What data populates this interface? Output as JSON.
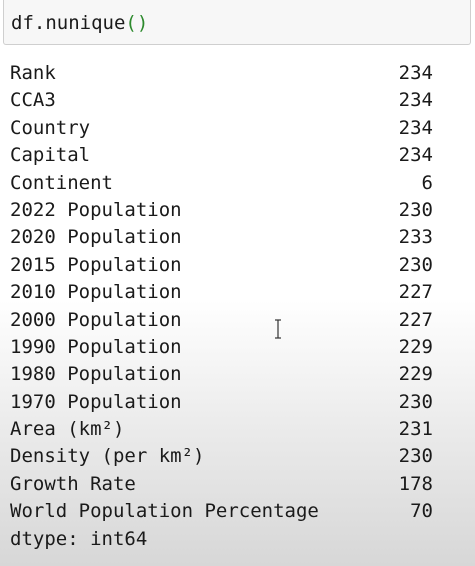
{
  "cell": {
    "code_prefix": "df.nunique",
    "code_parens": "()"
  },
  "output": {
    "rows": [
      {
        "label": "Rank",
        "value": "234"
      },
      {
        "label": "CCA3",
        "value": "234"
      },
      {
        "label": "Country",
        "value": "234"
      },
      {
        "label": "Capital",
        "value": "234"
      },
      {
        "label": "Continent",
        "value": "6"
      },
      {
        "label": "2022 Population",
        "value": "230"
      },
      {
        "label": "2020 Population",
        "value": "233"
      },
      {
        "label": "2015 Population",
        "value": "230"
      },
      {
        "label": "2010 Population",
        "value": "227"
      },
      {
        "label": "2000 Population",
        "value": "227"
      },
      {
        "label": "1990 Population",
        "value": "229"
      },
      {
        "label": "1980 Population",
        "value": "229"
      },
      {
        "label": "1970 Population",
        "value": "230"
      },
      {
        "label": "Area (km²)",
        "value": "231"
      },
      {
        "label": "Density (per km²)",
        "value": "230"
      },
      {
        "label": "Growth Rate",
        "value": "178"
      },
      {
        "label": "World Population Percentage",
        "value": "70"
      }
    ],
    "dtype": "dtype: int64"
  },
  "colors": {
    "paren": "#2d8a2d",
    "text": "#1a1a1a",
    "cell_background": "#f7f7f7"
  },
  "icons": {
    "cursor": "text-cursor-icon"
  }
}
